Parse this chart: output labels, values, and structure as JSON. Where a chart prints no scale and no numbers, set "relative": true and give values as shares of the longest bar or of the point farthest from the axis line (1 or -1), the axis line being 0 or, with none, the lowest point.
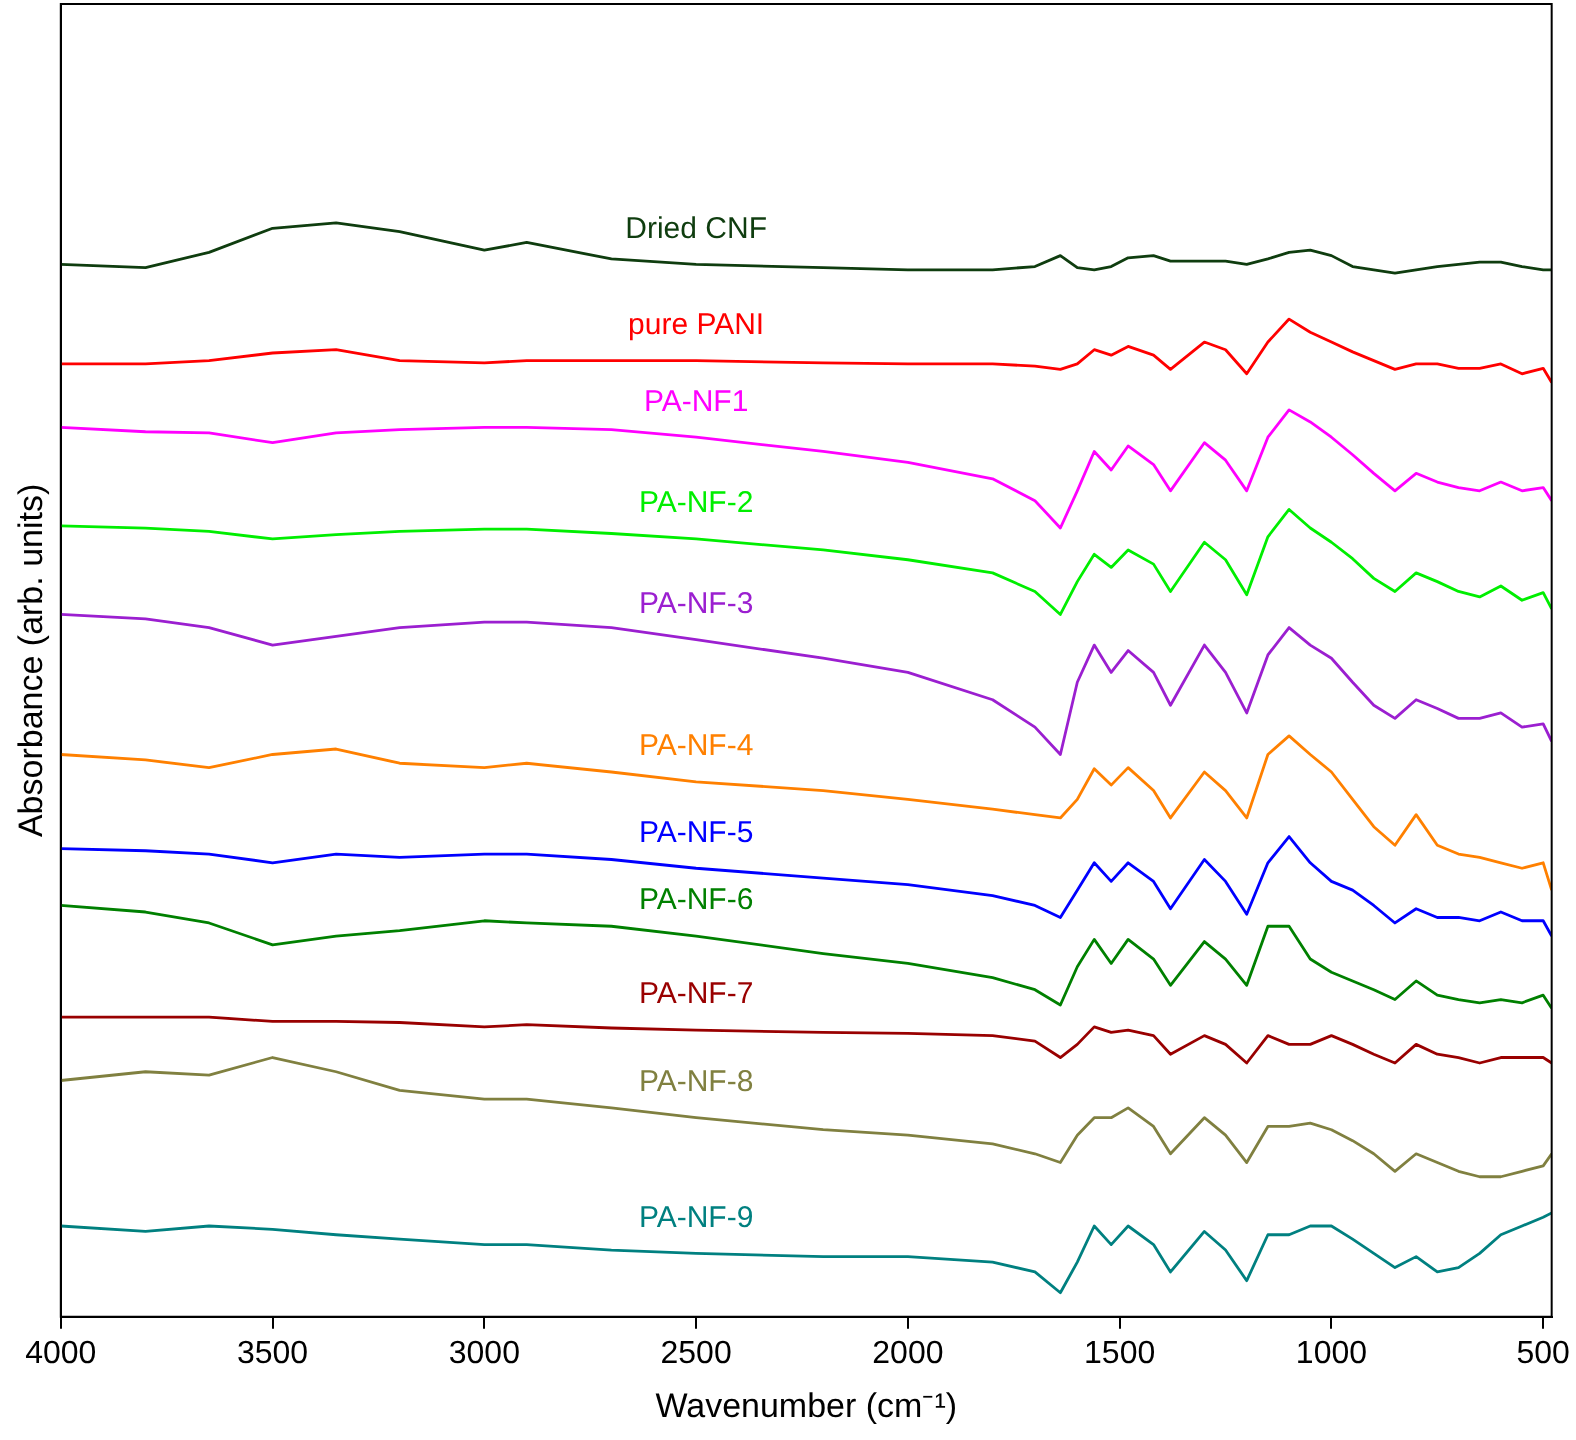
{
  "chart_data": {
    "type": "line",
    "relative": true,
    "xlabel": "Wavenumber (cm⁻¹)",
    "ylabel": "Absorbance (arb. units)",
    "xlim": [
      4000,
      480
    ],
    "xticks": [
      4000,
      3500,
      3000,
      2500,
      2000,
      1500,
      1000,
      500
    ],
    "grid": false,
    "legend": false,
    "marker": "none",
    "line_style": "solid",
    "x": [
      4000,
      3800,
      3650,
      3500,
      3350,
      3200,
      3000,
      2900,
      2700,
      2500,
      2200,
      2000,
      1800,
      1700,
      1640,
      1600,
      1560,
      1520,
      1480,
      1420,
      1380,
      1300,
      1250,
      1200,
      1150,
      1100,
      1050,
      1000,
      950,
      900,
      850,
      800,
      750,
      700,
      650,
      600,
      550,
      500,
      480
    ],
    "series": [
      {
        "name": "Dried CNF",
        "color": "#0f3d0f",
        "values": [
          0.962,
          0.959,
          0.973,
          0.995,
          1,
          0.992,
          0.975,
          0.982,
          0.967,
          0.962,
          0.959,
          0.957,
          0.957,
          0.96,
          0.97,
          0.959,
          0.957,
          0.96,
          0.968,
          0.97,
          0.965,
          0.965,
          0.965,
          0.962,
          0.967,
          0.973,
          0.975,
          0.97,
          0.96,
          0.957,
          0.954,
          0.957,
          0.96,
          0.962,
          0.964,
          0.964,
          0.96,
          0.957,
          0.957
        ]
      },
      {
        "name": "pure PANI",
        "color": "#ff0000",
        "values": [
          0.871,
          0.871,
          0.874,
          0.881,
          0.884,
          0.874,
          0.872,
          0.874,
          0.874,
          0.874,
          0.872,
          0.871,
          0.871,
          0.869,
          0.866,
          0.871,
          0.884,
          0.879,
          0.887,
          0.879,
          0.866,
          0.891,
          0.884,
          0.862,
          0.891,
          0.912,
          0.9,
          0.891,
          0.882,
          0.874,
          0.866,
          0.871,
          0.871,
          0.867,
          0.867,
          0.871,
          0.862,
          0.867,
          0.854
        ]
      },
      {
        "name": "PA-NF1",
        "color": "#ff00ff",
        "values": [
          0.813,
          0.809,
          0.808,
          0.799,
          0.808,
          0.811,
          0.813,
          0.813,
          0.811,
          0.804,
          0.791,
          0.781,
          0.766,
          0.746,
          0.721,
          0.755,
          0.791,
          0.774,
          0.796,
          0.779,
          0.755,
          0.799,
          0.783,
          0.755,
          0.804,
          0.829,
          0.818,
          0.804,
          0.788,
          0.771,
          0.755,
          0.771,
          0.763,
          0.758,
          0.755,
          0.763,
          0.755,
          0.758,
          0.746
        ]
      },
      {
        "name": "PA-NF-2",
        "color": "#00ee00",
        "values": [
          0.723,
          0.721,
          0.718,
          0.711,
          0.715,
          0.718,
          0.72,
          0.72,
          0.716,
          0.711,
          0.701,
          0.692,
          0.68,
          0.663,
          0.642,
          0.672,
          0.697,
          0.685,
          0.701,
          0.688,
          0.663,
          0.708,
          0.692,
          0.66,
          0.713,
          0.738,
          0.721,
          0.708,
          0.693,
          0.675,
          0.663,
          0.68,
          0.672,
          0.663,
          0.658,
          0.668,
          0.655,
          0.662,
          0.647
        ]
      },
      {
        "name": "PA-NF-3",
        "color": "#9b1fd0",
        "values": [
          0.642,
          0.638,
          0.63,
          0.614,
          0.622,
          0.63,
          0.635,
          0.635,
          0.63,
          0.619,
          0.602,
          0.589,
          0.564,
          0.539,
          0.514,
          0.58,
          0.614,
          0.589,
          0.609,
          0.589,
          0.559,
          0.614,
          0.589,
          0.552,
          0.605,
          0.63,
          0.614,
          0.602,
          0.58,
          0.559,
          0.547,
          0.564,
          0.556,
          0.547,
          0.547,
          0.552,
          0.539,
          0.542,
          0.526
        ]
      },
      {
        "name": "PA-NF-4",
        "color": "#ff8000",
        "values": [
          0.514,
          0.509,
          0.502,
          0.514,
          0.519,
          0.506,
          0.502,
          0.506,
          0.498,
          0.489,
          0.481,
          0.473,
          0.464,
          0.459,
          0.456,
          0.473,
          0.501,
          0.486,
          0.502,
          0.481,
          0.456,
          0.498,
          0.481,
          0.456,
          0.514,
          0.531,
          0.514,
          0.498,
          0.473,
          0.448,
          0.431,
          0.459,
          0.431,
          0.423,
          0.42,
          0.415,
          0.41,
          0.415,
          0.39
        ]
      },
      {
        "name": "PA-NF-5",
        "color": "#0000ff",
        "values": [
          0.428,
          0.426,
          0.423,
          0.415,
          0.423,
          0.42,
          0.423,
          0.423,
          0.418,
          0.41,
          0.401,
          0.395,
          0.385,
          0.376,
          0.365,
          0.39,
          0.415,
          0.398,
          0.415,
          0.398,
          0.373,
          0.418,
          0.398,
          0.368,
          0.415,
          0.439,
          0.415,
          0.398,
          0.39,
          0.376,
          0.36,
          0.373,
          0.365,
          0.365,
          0.362,
          0.37,
          0.362,
          0.362,
          0.348
        ]
      },
      {
        "name": "PA-NF-6",
        "color": "#008000",
        "values": [
          0.376,
          0.37,
          0.36,
          0.34,
          0.348,
          0.353,
          0.362,
          0.36,
          0.357,
          0.348,
          0.332,
          0.323,
          0.31,
          0.299,
          0.285,
          0.32,
          0.345,
          0.323,
          0.345,
          0.327,
          0.303,
          0.343,
          0.327,
          0.303,
          0.357,
          0.357,
          0.327,
          0.315,
          0.307,
          0.299,
          0.29,
          0.307,
          0.294,
          0.29,
          0.287,
          0.29,
          0.287,
          0.294,
          0.282
        ]
      },
      {
        "name": "PA-NF-7",
        "color": "#990000",
        "values": [
          0.274,
          0.274,
          0.274,
          0.27,
          0.27,
          0.269,
          0.265,
          0.267,
          0.264,
          0.262,
          0.26,
          0.259,
          0.257,
          0.252,
          0.237,
          0.249,
          0.265,
          0.26,
          0.262,
          0.257,
          0.24,
          0.257,
          0.249,
          0.232,
          0.257,
          0.249,
          0.249,
          0.257,
          0.249,
          0.24,
          0.232,
          0.249,
          0.24,
          0.237,
          0.232,
          0.237,
          0.237,
          0.237,
          0.232
        ]
      },
      {
        "name": "PA-NF-8",
        "color": "#808040",
        "values": [
          0.216,
          0.224,
          0.221,
          0.237,
          0.224,
          0.207,
          0.199,
          0.199,
          0.191,
          0.182,
          0.171,
          0.166,
          0.158,
          0.149,
          0.141,
          0.166,
          0.182,
          0.182,
          0.191,
          0.174,
          0.149,
          0.182,
          0.166,
          0.141,
          0.174,
          0.174,
          0.177,
          0.171,
          0.161,
          0.149,
          0.133,
          0.149,
          0.141,
          0.133,
          0.128,
          0.128,
          0.133,
          0.138,
          0.149
        ]
      },
      {
        "name": "PA-NF-9",
        "color": "#008080",
        "values": [
          0.083,
          0.078,
          0.083,
          0.08,
          0.075,
          0.071,
          0.066,
          0.066,
          0.061,
          0.058,
          0.055,
          0.055,
          0.05,
          0.041,
          0.022,
          0.05,
          0.083,
          0.066,
          0.083,
          0.066,
          0.041,
          0.078,
          0.061,
          0.033,
          0.075,
          0.075,
          0.083,
          0.083,
          0.071,
          0.058,
          0.045,
          0.055,
          0.041,
          0.045,
          0.058,
          0.075,
          0.083,
          0.091,
          0.095
        ]
      }
    ]
  }
}
